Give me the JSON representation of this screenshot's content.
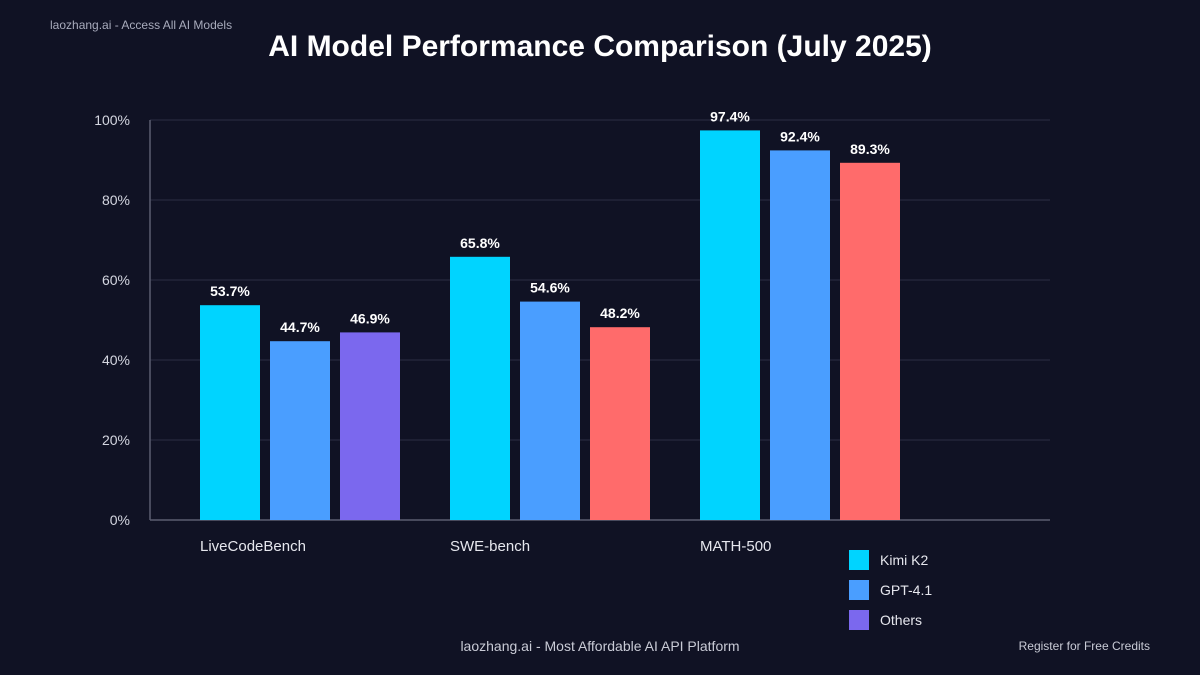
{
  "header": {
    "watermark": "laozhang.ai - Access All AI Models",
    "title": "AI Model Performance Comparison (July 2025)"
  },
  "chart_data": {
    "type": "bar",
    "title": "AI Model Performance Comparison (July 2025)",
    "xlabel": "",
    "ylabel": "",
    "ylim": [
      0,
      100
    ],
    "yticks": [
      "0%",
      "20%",
      "40%",
      "60%",
      "80%",
      "100%"
    ],
    "grid": true,
    "categories": [
      "LiveCodeBench",
      "SWE-bench",
      "MATH-500"
    ],
    "series": [
      {
        "name": "Kimi K2",
        "color": "#00d4ff",
        "values": [
          53.7,
          65.8,
          97.4
        ],
        "labels": [
          "53.7%",
          "65.8%",
          "97.4%"
        ]
      },
      {
        "name": "GPT-4.1",
        "color": "#4a9eff",
        "values": [
          44.7,
          54.6,
          92.4
        ],
        "labels": [
          "44.7%",
          "54.6%",
          "92.4%"
        ]
      },
      {
        "name": "Others",
        "color": "#7b68ee",
        "values": [
          46.9,
          48.2,
          89.3
        ],
        "labels": [
          "46.9%",
          "48.2%",
          "89.3%"
        ],
        "bar_colors": [
          "#7b68ee",
          "#ff6b6b",
          "#ff6b6b"
        ]
      }
    ],
    "legend_position": "bottom-right"
  },
  "legend": [
    {
      "label": "Kimi K2",
      "color": "#00d4ff"
    },
    {
      "label": "GPT-4.1",
      "color": "#4a9eff"
    },
    {
      "label": "Others",
      "color": "#7b68ee"
    }
  ],
  "footer": {
    "platform": "laozhang.ai - Most Affordable AI API Platform",
    "cta": "Register for Free Credits"
  }
}
